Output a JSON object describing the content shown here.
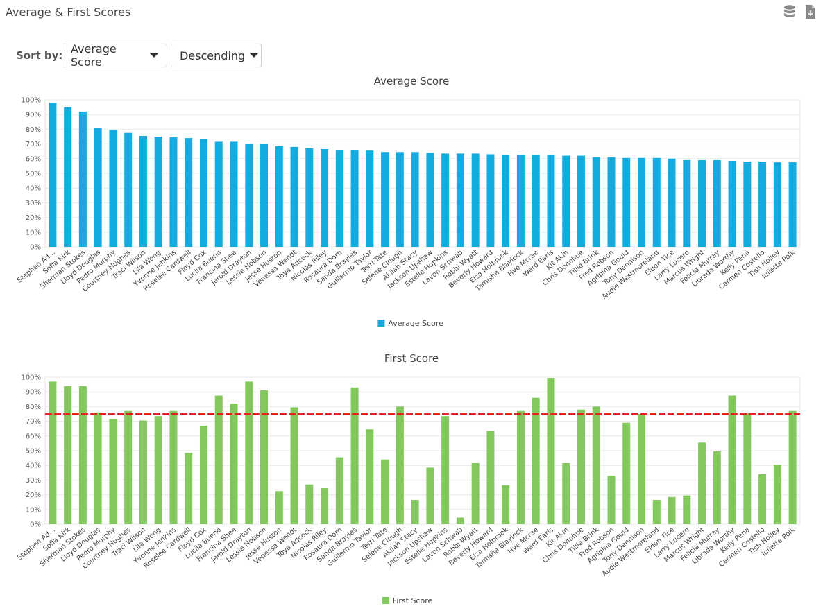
{
  "page": {
    "title": "Average & First Scores"
  },
  "header_icons": [
    {
      "name": "database-icon",
      "color": "#8a8a8a"
    },
    {
      "name": "export-file-icon",
      "color": "#8a8a8a"
    }
  ],
  "controls": {
    "sort_label": "Sort by:",
    "sort_field": "Average Score",
    "sort_order": "Descending"
  },
  "chart_data": [
    {
      "type": "bar",
      "title": "Average Score",
      "color": "#14ace0",
      "ylim": [
        0,
        100
      ],
      "yticks": [
        "0%",
        "10%",
        "20%",
        "30%",
        "40%",
        "50%",
        "60%",
        "70%",
        "80%",
        "90%",
        "100%"
      ],
      "grid": true,
      "legend_position": "bottom",
      "categories": [
        "Stephen Ad...",
        "Sofia Kirk",
        "Sherman Stokes",
        "Lloyd Douglas",
        "Pedro Murphy",
        "Courtney Hughes",
        "Traci Wilson",
        "Lila Wong",
        "Yvonne Jenkins",
        "Roselee Cardwell",
        "Floyd Cox",
        "Lucila Bueno",
        "Francina Shea",
        "Jerold Drayton",
        "Lessie Hobson",
        "Jesse Huston",
        "Venessa Wendt",
        "Toya Adcock",
        "Nicolas Riley",
        "Rosaura Dorn",
        "Sanda Brayles",
        "Guillermo Taylor",
        "Terri Tate",
        "Selene Clough",
        "Akilah Stacy",
        "Jackson Upshaw",
        "Estelle Hopkins",
        "Lavon Schwab",
        "Robbi Wyatt",
        "Beverly Howard",
        "Elza Holbrook",
        "Tamisha Blaylock",
        "Hye Mcrae",
        "Ward Earls",
        "Kit Akin",
        "Chris Donohue",
        "Tillie Brink",
        "Fred Robson",
        "Agripina Gould",
        "Tony Dennison",
        "Audie Westmoreland",
        "Eldon Tice",
        "Larry Lucero",
        "Marcus Wright",
        "Felicia Murray",
        "Librada Worthy",
        "Kelly Pena",
        "Carmen Costello",
        "Tish Holley",
        "Juliette Polk"
      ],
      "series": [
        {
          "name": "Average Score",
          "values": [
            98,
            95,
            92,
            81,
            79.5,
            77.5,
            75.5,
            75,
            74.5,
            74,
            73.5,
            71.5,
            71.5,
            70,
            70,
            68.5,
            68,
            67,
            66.5,
            66,
            66,
            65.5,
            64.5,
            64.5,
            64.5,
            64,
            63.5,
            63.5,
            63.5,
            63,
            62.5,
            62.5,
            62.5,
            62.5,
            62,
            62,
            61,
            61,
            60.5,
            60.5,
            60.5,
            60,
            59,
            59,
            59,
            58.5,
            58,
            58,
            57.5,
            57.5
          ]
        }
      ]
    },
    {
      "type": "bar",
      "title": "First Score",
      "color": "#82c85c",
      "ylim": [
        0,
        100
      ],
      "yticks": [
        "0%",
        "10%",
        "20%",
        "30%",
        "40%",
        "50%",
        "60%",
        "70%",
        "80%",
        "90%",
        "100%"
      ],
      "grid": true,
      "legend_position": "bottom",
      "reference_line": {
        "value": 75,
        "color": "#e8201c",
        "style": "dashed"
      },
      "categories": [
        "Stephen Ad...",
        "Sofia Kirk",
        "Sherman Stokes",
        "Lloyd Douglas",
        "Pedro Murphy",
        "Courtney Hughes",
        "Traci Wilson",
        "Lila Wong",
        "Yvonne Jenkins",
        "Roselee Cardwell",
        "Floyd Cox",
        "Lucila Bueno",
        "Francina Shea",
        "Jerold Drayton",
        "Lessie Hobson",
        "Jesse Huston",
        "Venessa Wendt",
        "Toya Adcock",
        "Nicolas Riley",
        "Rosaura Dorn",
        "Sanda Brayles",
        "Guillermo Taylor",
        "Terri Tate",
        "Selene Clough",
        "Akilah Stacy",
        "Jackson Upshaw",
        "Estelle Hopkins",
        "Lavon Schwab",
        "Robbi Wyatt",
        "Beverly Howard",
        "Elza Holbrook",
        "Tamisha Blaylock",
        "Hye Mcrae",
        "Ward Earls",
        "Kit Akin",
        "Chris Donohue",
        "Tillie Brink",
        "Fred Robson",
        "Agripina Gould",
        "Tony Dennison",
        "Audie Westmoreland",
        "Eldon Tice",
        "Larry Lucero",
        "Marcus Wright",
        "Felicia Murray",
        "Librada Worthy",
        "Kelly Pena",
        "Carmen Costello",
        "Tish Holley",
        "Juliette Polk"
      ],
      "series": [
        {
          "name": "First Score",
          "values": [
            97,
            94,
            94,
            76,
            71.5,
            77,
            70.5,
            73.5,
            77,
            48.5,
            67,
            87.5,
            82,
            97,
            91,
            22.5,
            79.5,
            27,
            24.5,
            45.5,
            93,
            64.5,
            44,
            80,
            16.5,
            38.5,
            73.5,
            4.5,
            41.5,
            63.5,
            26.5,
            77,
            86,
            99.5,
            41.5,
            78,
            80,
            33,
            69,
            75,
            16.5,
            18.5,
            19.5,
            55.5,
            49.5,
            87.5,
            75.5,
            34,
            40.5,
            77
          ]
        }
      ]
    }
  ]
}
